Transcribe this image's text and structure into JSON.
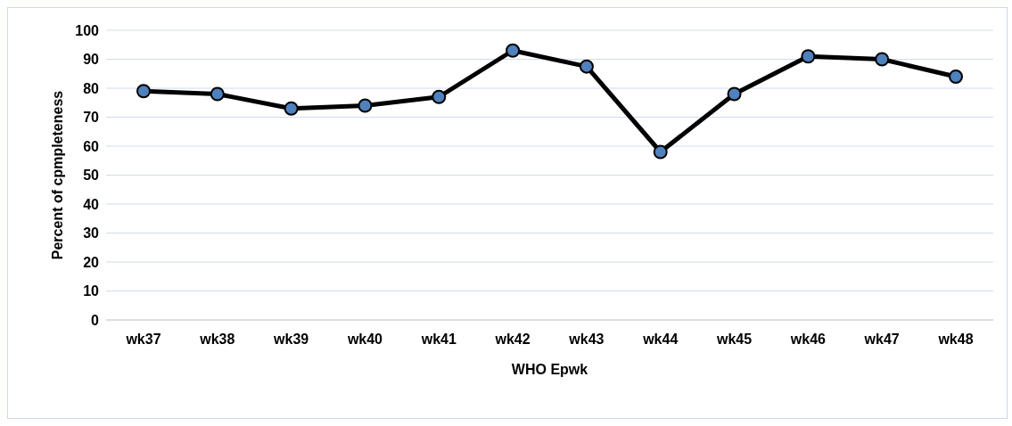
{
  "chart_data": {
    "type": "line",
    "xlabel": "WHO Epwk",
    "ylabel": "Percent of cpmpleteness",
    "categories": [
      "wk37",
      "wk38",
      "wk39",
      "wk40",
      "wk41",
      "wk42",
      "wk43",
      "wk44",
      "wk45",
      "wk46",
      "wk47",
      "wk48"
    ],
    "series": [
      {
        "color": "#000000",
        "values": [
          79,
          78,
          73,
          74,
          77,
          93,
          87.5,
          58,
          78,
          91,
          90,
          84
        ]
      }
    ],
    "ylim": [
      0,
      100
    ],
    "yticks": [
      0,
      10,
      20,
      30,
      40,
      50,
      60,
      70,
      80,
      90,
      100
    ],
    "grid": "y",
    "marker": "circle",
    "line_style": "solid"
  }
}
